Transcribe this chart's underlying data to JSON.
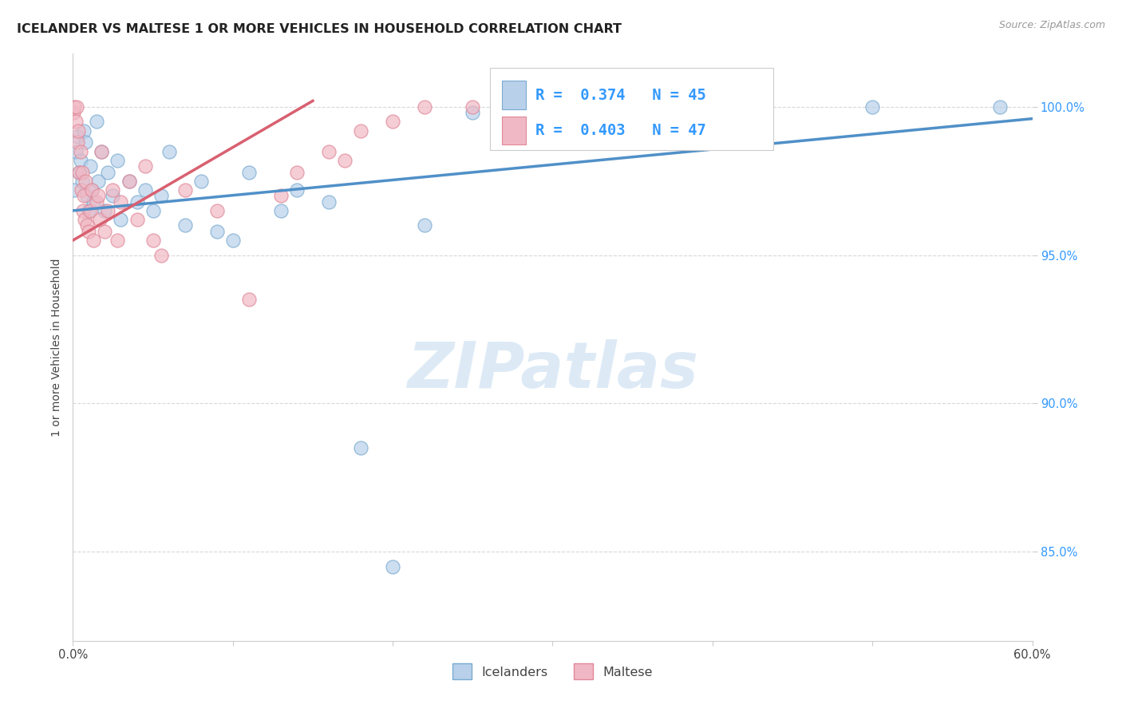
{
  "title": "ICELANDER VS MALTESE 1 OR MORE VEHICLES IN HOUSEHOLD CORRELATION CHART",
  "source": "Source: ZipAtlas.com",
  "ylabel": "1 or more Vehicles in Household",
  "x_min": 0.0,
  "x_max": 60.0,
  "y_min": 82.0,
  "y_max": 101.8,
  "y_ticks": [
    85.0,
    90.0,
    95.0,
    100.0
  ],
  "y_tick_labels": [
    "85.0%",
    "90.0%",
    "95.0%",
    "100.0%"
  ],
  "x_ticks": [
    0.0,
    10.0,
    20.0,
    30.0,
    40.0,
    50.0,
    60.0
  ],
  "legend_icelanders": "Icelanders",
  "legend_maltese": "Maltese",
  "r_icelanders": "0.374",
  "n_icelanders": "45",
  "r_maltese": "0.403",
  "n_maltese": "47",
  "icelander_fill": "#b8d0ea",
  "maltese_fill": "#f0b8c4",
  "icelander_edge": "#7aaad0",
  "maltese_edge": "#e08898",
  "icelander_line": "#5090c8",
  "maltese_line": "#d86070",
  "watermark": "ZIPatlas",
  "watermark_color": "#ddeaf6",
  "background_color": "#ffffff",
  "grid_color": "#d8d8d8",
  "title_fontsize": 11.5,
  "axis_label_fontsize": 10,
  "tick_fontsize": 10.5,
  "rn_fontsize": 13.5,
  "icelanders_x": [
    0.1,
    0.2,
    0.3,
    0.4,
    0.5,
    0.6,
    0.7,
    0.8,
    0.9,
    1.0,
    1.1,
    1.2,
    1.3,
    1.5,
    1.6,
    1.8,
    2.0,
    2.2,
    2.5,
    2.8,
    3.0,
    3.5,
    4.0,
    4.5,
    5.0,
    5.5,
    6.0,
    7.0,
    8.0,
    9.0,
    10.0,
    11.0,
    13.0,
    14.0,
    16.0,
    18.0,
    20.0,
    22.0,
    25.0,
    28.0,
    32.0,
    37.0,
    42.0,
    50.0,
    58.0
  ],
  "icelanders_y": [
    97.2,
    98.5,
    99.0,
    97.8,
    98.2,
    97.5,
    99.2,
    98.8,
    97.0,
    96.5,
    98.0,
    97.2,
    96.8,
    99.5,
    97.5,
    98.5,
    96.5,
    97.8,
    97.0,
    98.2,
    96.2,
    97.5,
    96.8,
    97.2,
    96.5,
    97.0,
    98.5,
    96.0,
    97.5,
    95.8,
    95.5,
    97.8,
    96.5,
    97.2,
    96.8,
    88.5,
    84.5,
    96.0,
    99.8,
    100.0,
    99.5,
    100.0,
    99.8,
    100.0,
    100.0
  ],
  "maltese_x": [
    0.05,
    0.1,
    0.2,
    0.25,
    0.3,
    0.35,
    0.4,
    0.5,
    0.55,
    0.6,
    0.65,
    0.7,
    0.75,
    0.8,
    0.9,
    1.0,
    1.1,
    1.2,
    1.3,
    1.5,
    1.6,
    1.7,
    1.8,
    2.0,
    2.2,
    2.5,
    2.8,
    3.0,
    3.5,
    4.0,
    4.5,
    5.0,
    5.5,
    7.0,
    9.0,
    11.0,
    13.0,
    14.0,
    16.0,
    17.0,
    18.0,
    20.0,
    22.0,
    25.0,
    27.0,
    30.0,
    35.0
  ],
  "maltese_y": [
    99.8,
    100.0,
    99.5,
    100.0,
    98.8,
    99.2,
    97.8,
    98.5,
    97.2,
    97.8,
    96.5,
    97.0,
    96.2,
    97.5,
    96.0,
    95.8,
    96.5,
    97.2,
    95.5,
    96.8,
    97.0,
    96.2,
    98.5,
    95.8,
    96.5,
    97.2,
    95.5,
    96.8,
    97.5,
    96.2,
    98.0,
    95.5,
    95.0,
    97.2,
    96.5,
    93.5,
    97.0,
    97.8,
    98.5,
    98.2,
    99.2,
    99.5,
    100.0,
    100.0,
    100.0,
    100.0,
    100.0
  ],
  "icelander_line_x0": 0.0,
  "icelander_line_y0": 96.5,
  "icelander_line_x1": 60.0,
  "icelander_line_y1": 99.6,
  "maltese_line_x0": 0.0,
  "maltese_line_y0": 95.5,
  "maltese_line_x1": 15.0,
  "maltese_line_y1": 100.2
}
